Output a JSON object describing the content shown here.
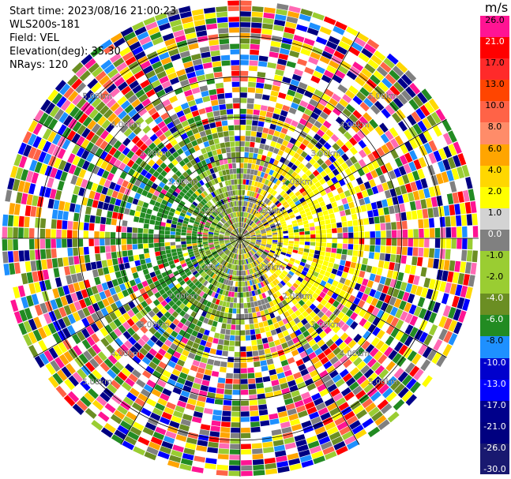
{
  "info": {
    "start_time": "Start time: 2023/08/16 21:00:23",
    "instrument": "WLS200s-181",
    "field": "Field: VEL",
    "elevation": "Elevation(deg): 35.30",
    "nrays": "NRays: 120"
  },
  "colorbar": {
    "unit": "m/s",
    "labels": [
      "26.0",
      "21.0",
      "17.0",
      "13.0",
      "10.0",
      "8.0",
      "6.0",
      "4.0",
      "2.0",
      "1.0",
      "0.0",
      "-1.0",
      "-2.0",
      "-4.0",
      "-6.0",
      "-8.0",
      "-10.0",
      "-13.0",
      "-17.0",
      "-21.0",
      "-26.0",
      "-30.0"
    ],
    "colors": [
      "#ff1493",
      "#ff0000",
      "#ff2a2a",
      "#ff4500",
      "#ff6347",
      "#ff8c69",
      "#ffa500",
      "#ffd700",
      "#ffff00",
      "#d3d3d3",
      "#808080",
      "#9acd32",
      "#9acd32",
      "#6b8e23",
      "#228b22",
      "#1e90ff",
      "#0000cd",
      "#0000ff",
      "#00008b",
      "#000080",
      "#191970"
    ]
  },
  "chart_data": {
    "type": "heatmap",
    "title": "",
    "field": "VEL",
    "unit": "m/s",
    "nrays": 120,
    "elevation_deg": 35.3,
    "range_rings_km": [
      1.0,
      2.0,
      3.0,
      4.0,
      5.0
    ],
    "range_labels": [
      "1.00km",
      "2.00km",
      "3.00km",
      "4.00km",
      "5.00km"
    ],
    "value_range": [
      -30.0,
      26.0
    ]
  }
}
